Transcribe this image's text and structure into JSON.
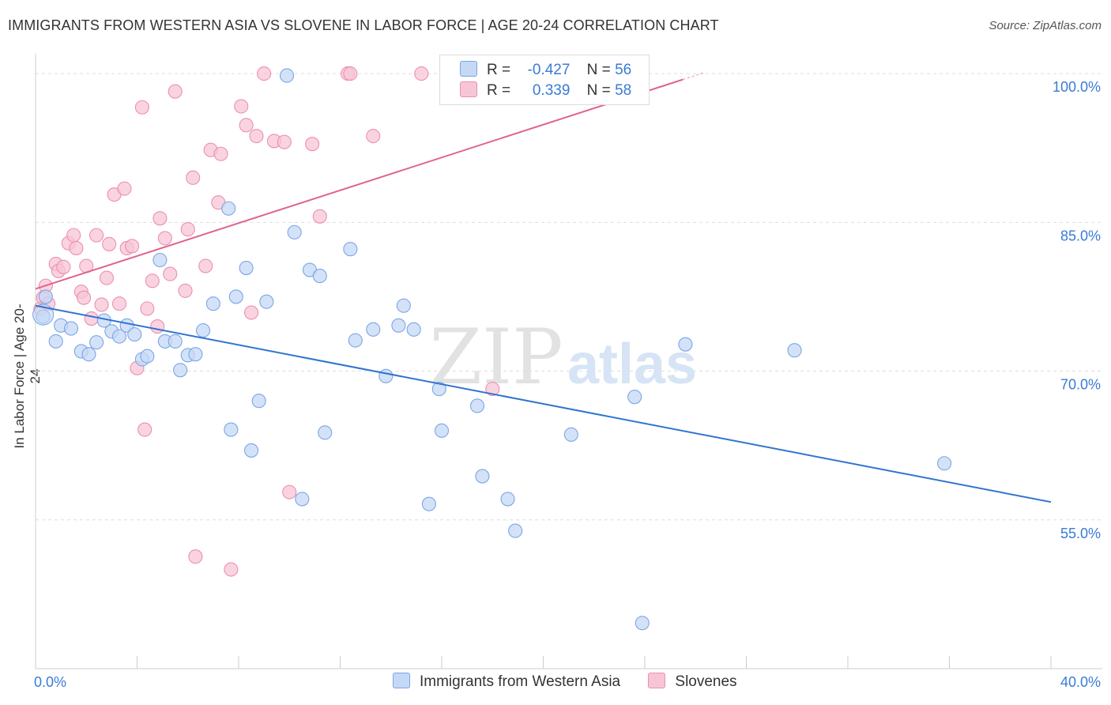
{
  "header": {
    "title": "IMMIGRANTS FROM WESTERN ASIA VS SLOVENE IN LABOR FORCE | AGE 20-24 CORRELATION CHART",
    "source": "Source: ZipAtlas.com"
  },
  "watermark": {
    "zip": "ZIP",
    "atlas": "atlas"
  },
  "legend_box": {
    "rows": [
      {
        "r_label": "R =",
        "r_value": "-0.427",
        "n_label": "N =",
        "n_value": "56"
      },
      {
        "r_label": "R =",
        "r_value": "0.339",
        "n_label": "N =",
        "n_value": "58"
      }
    ]
  },
  "bottom_legend": [
    "Immigrants from Western Asia",
    "Slovenes"
  ],
  "colors": {
    "blue_fill": "#c5d8f5",
    "blue_stroke": "#7aa6e6",
    "blue_line": "#2f74d0",
    "pink_fill": "#f7c6d6",
    "pink_stroke": "#ec8fb0",
    "pink_line": "#e0648d",
    "grid": "#dddddd",
    "tick_text": "#3a7bd5"
  },
  "chart_data": {
    "type": "scatter",
    "title": "IMMIGRANTS FROM WESTERN ASIA VS SLOVENE IN LABOR FORCE | AGE 20-24 CORRELATION CHART",
    "xlabel": "",
    "ylabel": "In Labor Force | Age 20-24",
    "xlim": [
      0,
      40
    ],
    "ylim": [
      40,
      102
    ],
    "x_tick_labels": [
      {
        "v": 0,
        "label": "0.0%"
      },
      {
        "v": 40,
        "label": "40.0%"
      }
    ],
    "y_tick_labels": [
      {
        "v": 55,
        "label": "55.0%"
      },
      {
        "v": 70,
        "label": "70.0%"
      },
      {
        "v": 85,
        "label": "85.0%"
      },
      {
        "v": 100,
        "label": "100.0%"
      }
    ],
    "series": [
      {
        "name": "Immigrants from Western Asia",
        "color": "blue",
        "trend": {
          "x": [
            0,
            40
          ],
          "y": [
            76.6,
            56.8
          ]
        },
        "points": [
          [
            0.3,
            75.5
          ],
          [
            0.4,
            77.5
          ],
          [
            0.8,
            73.0
          ],
          [
            1.0,
            74.6
          ],
          [
            1.4,
            74.3
          ],
          [
            1.8,
            72.0
          ],
          [
            2.1,
            71.7
          ],
          [
            2.4,
            72.9
          ],
          [
            2.7,
            75.1
          ],
          [
            3.0,
            74.0
          ],
          [
            3.3,
            73.5
          ],
          [
            3.6,
            74.6
          ],
          [
            3.9,
            73.7
          ],
          [
            4.2,
            71.2
          ],
          [
            4.4,
            71.5
          ],
          [
            4.9,
            81.2
          ],
          [
            5.1,
            73.0
          ],
          [
            5.5,
            73.0
          ],
          [
            5.7,
            70.1
          ],
          [
            6.0,
            71.6
          ],
          [
            6.3,
            71.7
          ],
          [
            6.6,
            74.1
          ],
          [
            7.0,
            76.8
          ],
          [
            7.6,
            86.4
          ],
          [
            7.7,
            64.1
          ],
          [
            7.9,
            77.5
          ],
          [
            8.3,
            80.4
          ],
          [
            8.5,
            62.0
          ],
          [
            8.8,
            67.0
          ],
          [
            9.1,
            77.0
          ],
          [
            9.9,
            99.8
          ],
          [
            10.2,
            84.0
          ],
          [
            10.5,
            57.1
          ],
          [
            10.8,
            80.2
          ],
          [
            11.2,
            79.6
          ],
          [
            11.4,
            63.8
          ],
          [
            12.4,
            82.3
          ],
          [
            12.6,
            73.1
          ],
          [
            13.3,
            74.2
          ],
          [
            13.8,
            69.5
          ],
          [
            14.3,
            74.6
          ],
          [
            14.5,
            76.6
          ],
          [
            14.9,
            74.2
          ],
          [
            15.5,
            56.6
          ],
          [
            15.9,
            68.2
          ],
          [
            16.0,
            64.0
          ],
          [
            17.4,
            66.5
          ],
          [
            17.6,
            59.4
          ],
          [
            18.6,
            57.1
          ],
          [
            18.9,
            53.9
          ],
          [
            21.1,
            63.6
          ],
          [
            23.6,
            67.4
          ],
          [
            23.9,
            44.6
          ],
          [
            25.6,
            72.7
          ],
          [
            29.9,
            72.1
          ],
          [
            35.8,
            60.7
          ]
        ]
      },
      {
        "name": "Slovenes",
        "color": "pink",
        "trend": {
          "x": [
            0,
            25.5
          ],
          "y": [
            78.3,
            99.4
          ]
        },
        "points": [
          [
            0.2,
            76.3
          ],
          [
            0.3,
            77.4
          ],
          [
            0.4,
            78.6
          ],
          [
            0.5,
            76.8
          ],
          [
            0.8,
            80.8
          ],
          [
            0.9,
            80.1
          ],
          [
            1.1,
            80.5
          ],
          [
            1.3,
            82.9
          ],
          [
            1.5,
            83.7
          ],
          [
            1.6,
            82.4
          ],
          [
            1.8,
            78.0
          ],
          [
            1.9,
            77.4
          ],
          [
            2.0,
            80.6
          ],
          [
            2.2,
            75.3
          ],
          [
            2.4,
            83.7
          ],
          [
            2.6,
            76.7
          ],
          [
            2.8,
            79.4
          ],
          [
            2.9,
            82.8
          ],
          [
            3.1,
            87.8
          ],
          [
            3.3,
            76.8
          ],
          [
            3.5,
            88.4
          ],
          [
            3.6,
            82.4
          ],
          [
            3.8,
            82.6
          ],
          [
            4.0,
            70.3
          ],
          [
            4.2,
            96.6
          ],
          [
            4.3,
            64.1
          ],
          [
            4.4,
            76.3
          ],
          [
            4.6,
            79.1
          ],
          [
            4.8,
            74.5
          ],
          [
            4.9,
            85.4
          ],
          [
            5.1,
            83.4
          ],
          [
            5.3,
            79.8
          ],
          [
            5.5,
            98.2
          ],
          [
            5.9,
            78.1
          ],
          [
            6.0,
            84.3
          ],
          [
            6.2,
            89.5
          ],
          [
            6.3,
            51.3
          ],
          [
            6.7,
            80.6
          ],
          [
            6.9,
            92.3
          ],
          [
            7.2,
            87.0
          ],
          [
            7.3,
            91.9
          ],
          [
            7.7,
            50.0
          ],
          [
            8.1,
            96.7
          ],
          [
            8.3,
            94.8
          ],
          [
            8.5,
            75.9
          ],
          [
            8.7,
            93.7
          ],
          [
            9.0,
            100.0
          ],
          [
            9.4,
            93.2
          ],
          [
            9.8,
            93.1
          ],
          [
            10.0,
            57.8
          ],
          [
            10.9,
            92.9
          ],
          [
            11.2,
            85.6
          ],
          [
            12.3,
            100.0
          ],
          [
            12.4,
            100.0
          ],
          [
            13.3,
            93.7
          ],
          [
            15.2,
            100.0
          ],
          [
            18.0,
            68.2
          ],
          [
            21.1,
            100.0
          ]
        ]
      }
    ]
  }
}
